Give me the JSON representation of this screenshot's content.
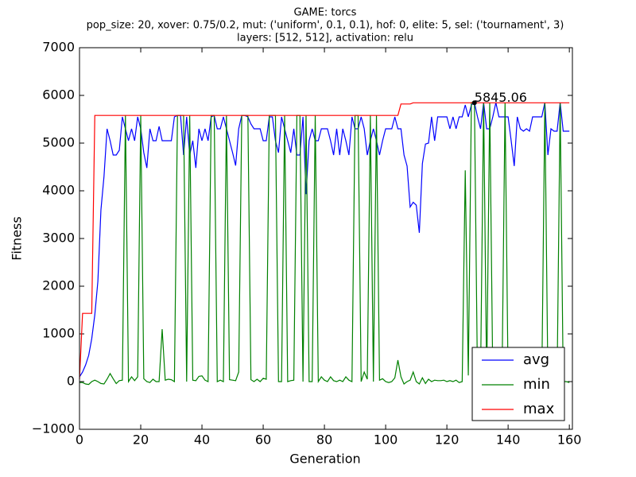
{
  "chart_data": {
    "type": "line",
    "title_lines": [
      "GAME: torcs",
      "pop_size: 20, xover: 0.75/0.2, mut: ('uniform', 0.1, 0.1), hof: 0, elite: 5, sel: ('tournament', 3)",
      "layers: [512, 512], activation: relu"
    ],
    "x_label": "Generation",
    "y_label": "Fitness",
    "xlim": [
      0,
      161
    ],
    "ylim": [
      -1000,
      7000
    ],
    "xticks": [
      0,
      20,
      40,
      60,
      80,
      100,
      120,
      140,
      160
    ],
    "yticks": [
      {
        "value": -1000,
        "label": "−1000"
      },
      0,
      1000,
      2000,
      3000,
      4000,
      5000,
      6000,
      7000
    ],
    "legend": "lower right",
    "x": [
      0,
      1,
      2,
      3,
      4,
      5,
      6,
      7,
      8,
      9,
      10,
      11,
      12,
      13,
      14,
      15,
      16,
      17,
      18,
      19,
      20,
      21,
      22,
      23,
      24,
      25,
      26,
      27,
      28,
      29,
      30,
      31,
      32,
      33,
      34,
      35,
      36,
      37,
      38,
      39,
      40,
      41,
      42,
      43,
      44,
      45,
      46,
      47,
      48,
      49,
      50,
      51,
      52,
      53,
      54,
      55,
      56,
      57,
      58,
      59,
      60,
      61,
      62,
      63,
      64,
      65,
      66,
      67,
      68,
      69,
      70,
      71,
      72,
      73,
      74,
      75,
      76,
      77,
      78,
      79,
      80,
      81,
      82,
      83,
      84,
      85,
      86,
      87,
      88,
      89,
      90,
      91,
      92,
      93,
      94,
      95,
      96,
      97,
      98,
      99,
      100,
      101,
      102,
      103,
      104,
      105,
      106,
      107,
      108,
      109,
      110,
      111,
      112,
      113,
      114,
      115,
      116,
      117,
      118,
      119,
      120,
      121,
      122,
      123,
      124,
      125,
      126,
      127,
      128,
      129,
      130,
      131,
      132,
      133,
      134,
      135,
      136,
      137,
      138,
      139,
      140,
      141,
      142,
      143,
      144,
      145,
      146,
      147,
      148,
      149,
      150,
      151,
      152,
      153,
      154,
      155,
      156,
      157,
      158,
      159,
      160
    ],
    "series": [
      {
        "name": "avg",
        "color": "#0000ff",
        "values": [
          100,
          200,
          350,
          550,
          900,
          1400,
          2100,
          3600,
          4300,
          5300,
          5050,
          4750,
          4750,
          4850,
          5550,
          5300,
          5050,
          5300,
          5050,
          5550,
          5300,
          4800,
          4480,
          5300,
          5050,
          5050,
          5350,
          5050,
          5050,
          5050,
          5050,
          5550,
          5580,
          5580,
          4750,
          5550,
          4750,
          5050,
          4480,
          5300,
          5050,
          5300,
          5050,
          5550,
          5580,
          5300,
          5300,
          5550,
          5300,
          5050,
          4800,
          4530,
          5300,
          5580,
          5580,
          5550,
          5400,
          5300,
          5300,
          5300,
          5050,
          5050,
          5550,
          5550,
          5050,
          4800,
          5550,
          5300,
          5050,
          4800,
          5300,
          4750,
          4750,
          5550,
          3930,
          5050,
          5300,
          5050,
          5050,
          5300,
          5300,
          5300,
          5050,
          4750,
          5300,
          4750,
          5300,
          5050,
          4750,
          5550,
          5300,
          5300,
          5550,
          5300,
          4750,
          5050,
          5300,
          5050,
          4750,
          5050,
          5300,
          5300,
          5300,
          5550,
          5300,
          5300,
          4750,
          4520,
          3660,
          3760,
          3700,
          3120,
          4570,
          4980,
          5000,
          5550,
          5050,
          5550,
          5550,
          5550,
          5550,
          5300,
          5550,
          5300,
          5550,
          5550,
          5800,
          5550,
          5800,
          5850,
          5550,
          5300,
          5850,
          5300,
          5300,
          5550,
          5850,
          5550,
          5550,
          5550,
          5550,
          5050,
          4520,
          5550,
          5300,
          5250,
          5300,
          5250,
          5550,
          5550,
          5550,
          5550,
          5850,
          4750,
          5300,
          5250,
          5250,
          5850,
          5250,
          5250,
          5250
        ]
      },
      {
        "name": "min",
        "color": "#008000",
        "values": [
          -20,
          -20,
          -50,
          -60,
          0,
          30,
          0,
          -40,
          -50,
          50,
          170,
          60,
          -40,
          20,
          30,
          5580,
          0,
          100,
          20,
          100,
          5580,
          60,
          0,
          -20,
          50,
          0,
          0,
          1100,
          30,
          50,
          40,
          0,
          5580,
          5580,
          5580,
          0,
          5580,
          30,
          20,
          110,
          120,
          30,
          0,
          5580,
          5580,
          0,
          30,
          0,
          5580,
          40,
          30,
          20,
          200,
          5580,
          5580,
          5580,
          40,
          0,
          50,
          0,
          70,
          50,
          5580,
          5580,
          5580,
          0,
          0,
          5580,
          0,
          20,
          30,
          5580,
          5580,
          0,
          5580,
          0,
          0,
          5580,
          0,
          100,
          30,
          0,
          100,
          20,
          0,
          30,
          0,
          100,
          30,
          0,
          5580,
          5580,
          0,
          200,
          50,
          5580,
          0,
          5580,
          30,
          60,
          0,
          -20,
          0,
          80,
          450,
          100,
          -50,
          0,
          30,
          200,
          0,
          -50,
          80,
          -40,
          50,
          0,
          30,
          20,
          20,
          30,
          0,
          20,
          0,
          30,
          -20,
          0,
          4430,
          130,
          5850,
          5850,
          0,
          100,
          5850,
          0,
          5850,
          30,
          0,
          50,
          -20,
          5850,
          20,
          0,
          30,
          -20,
          50,
          -30,
          30,
          0,
          -20,
          40,
          -20,
          0,
          5850,
          0,
          20,
          -10,
          30,
          5850,
          0,
          0,
          -20
        ]
      },
      {
        "name": "max",
        "color": "#ff0000",
        "values": [
          50,
          1430,
          1430,
          1430,
          1430,
          5580,
          5580,
          5580,
          5580,
          5580,
          5580,
          5580,
          5580,
          5580,
          5580,
          5580,
          5580,
          5580,
          5580,
          5580,
          5580,
          5580,
          5580,
          5580,
          5580,
          5580,
          5580,
          5580,
          5580,
          5580,
          5580,
          5580,
          5580,
          5580,
          5580,
          5580,
          5580,
          5580,
          5580,
          5580,
          5580,
          5580,
          5580,
          5580,
          5580,
          5580,
          5580,
          5580,
          5580,
          5580,
          5580,
          5580,
          5580,
          5580,
          5580,
          5580,
          5580,
          5580,
          5580,
          5580,
          5580,
          5580,
          5580,
          5580,
          5580,
          5580,
          5580,
          5580,
          5580,
          5580,
          5580,
          5580,
          5580,
          5580,
          5580,
          5580,
          5580,
          5580,
          5580,
          5580,
          5580,
          5580,
          5580,
          5580,
          5580,
          5580,
          5580,
          5580,
          5580,
          5580,
          5580,
          5580,
          5580,
          5580,
          5580,
          5580,
          5580,
          5580,
          5580,
          5580,
          5580,
          5580,
          5580,
          5580,
          5580,
          5820,
          5820,
          5820,
          5820,
          5845.06,
          5845.06,
          5845.06,
          5845.06,
          5845.06,
          5845.06,
          5845.06,
          5845.06,
          5845.06,
          5845.06,
          5845.06,
          5845.06,
          5845.06,
          5845.06,
          5845.06,
          5845.06,
          5845.06,
          5845.06,
          5845.06,
          5845.06,
          5845.06,
          5845.06,
          5845.06,
          5845.06,
          5845.06,
          5845.06,
          5845.06,
          5845.06,
          5845.06,
          5845.06,
          5845.06,
          5845.06,
          5845.06,
          5845.06,
          5845.06,
          5845.06,
          5845.06,
          5845.06,
          5845.06,
          5845.06,
          5845.06,
          5845.06,
          5845.06,
          5845.06,
          5845.06,
          5845.06,
          5845.06,
          5845.06,
          5845.06,
          5845.06,
          5845.06,
          5845.06
        ]
      }
    ],
    "annotation": {
      "x": 129,
      "value": 5845.06
    }
  }
}
